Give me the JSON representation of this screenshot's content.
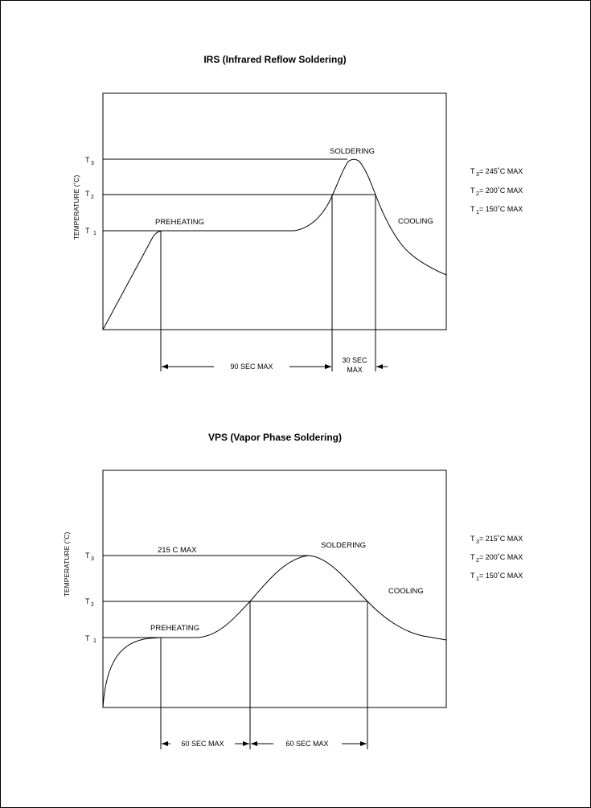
{
  "irs": {
    "title": "IRS (Infrared Reflow Soldering)",
    "ylabel": "TEMPERATURE (˚C)",
    "t_axis": {
      "t3_letter": "T",
      "t3_sub": "3",
      "t2_letter": "T",
      "t2_sub": "2",
      "t1_letter": "T",
      "t1_sub": "1"
    },
    "stages": {
      "preheating": "PREHEATING",
      "soldering": "SOLDERING",
      "cooling": "COOLING"
    },
    "limits": [
      {
        "letter": "T",
        "sub": "3",
        "text": "= 245˚C MAX"
      },
      {
        "letter": "T",
        "sub": "2",
        "text": "= 200˚C MAX"
      },
      {
        "letter": "T",
        "sub": "1",
        "text": "= 150˚C MAX"
      }
    ],
    "dims": {
      "preheat": "90 SEC MAX",
      "solder_line1": "30 SEC",
      "solder_line2": "MAX"
    }
  },
  "vps": {
    "title": "VPS (Vapor Phase Soldering)",
    "ylabel": "TEMPERATURE (˚C)",
    "t_axis": {
      "t3_letter": "T",
      "t3_sub": "3",
      "t2_letter": "T",
      "t2_sub": "2",
      "t1_letter": "T",
      "t1_sub": "1"
    },
    "peak_label": "215  C MAX",
    "stages": {
      "preheating": "PREHEATING",
      "soldering": "SOLDERING",
      "cooling": "COOLING"
    },
    "limits": [
      {
        "letter": "T",
        "sub": "3",
        "text": "= 215˚C MAX"
      },
      {
        "letter": "T",
        "sub": "2",
        "text": "= 200˚C MAX"
      },
      {
        "letter": "T",
        "sub": "1",
        "text": "= 150˚C MAX"
      }
    ],
    "dims": {
      "preheat": "60 SEC MAX",
      "solder": "60 SEC MAX"
    }
  }
}
